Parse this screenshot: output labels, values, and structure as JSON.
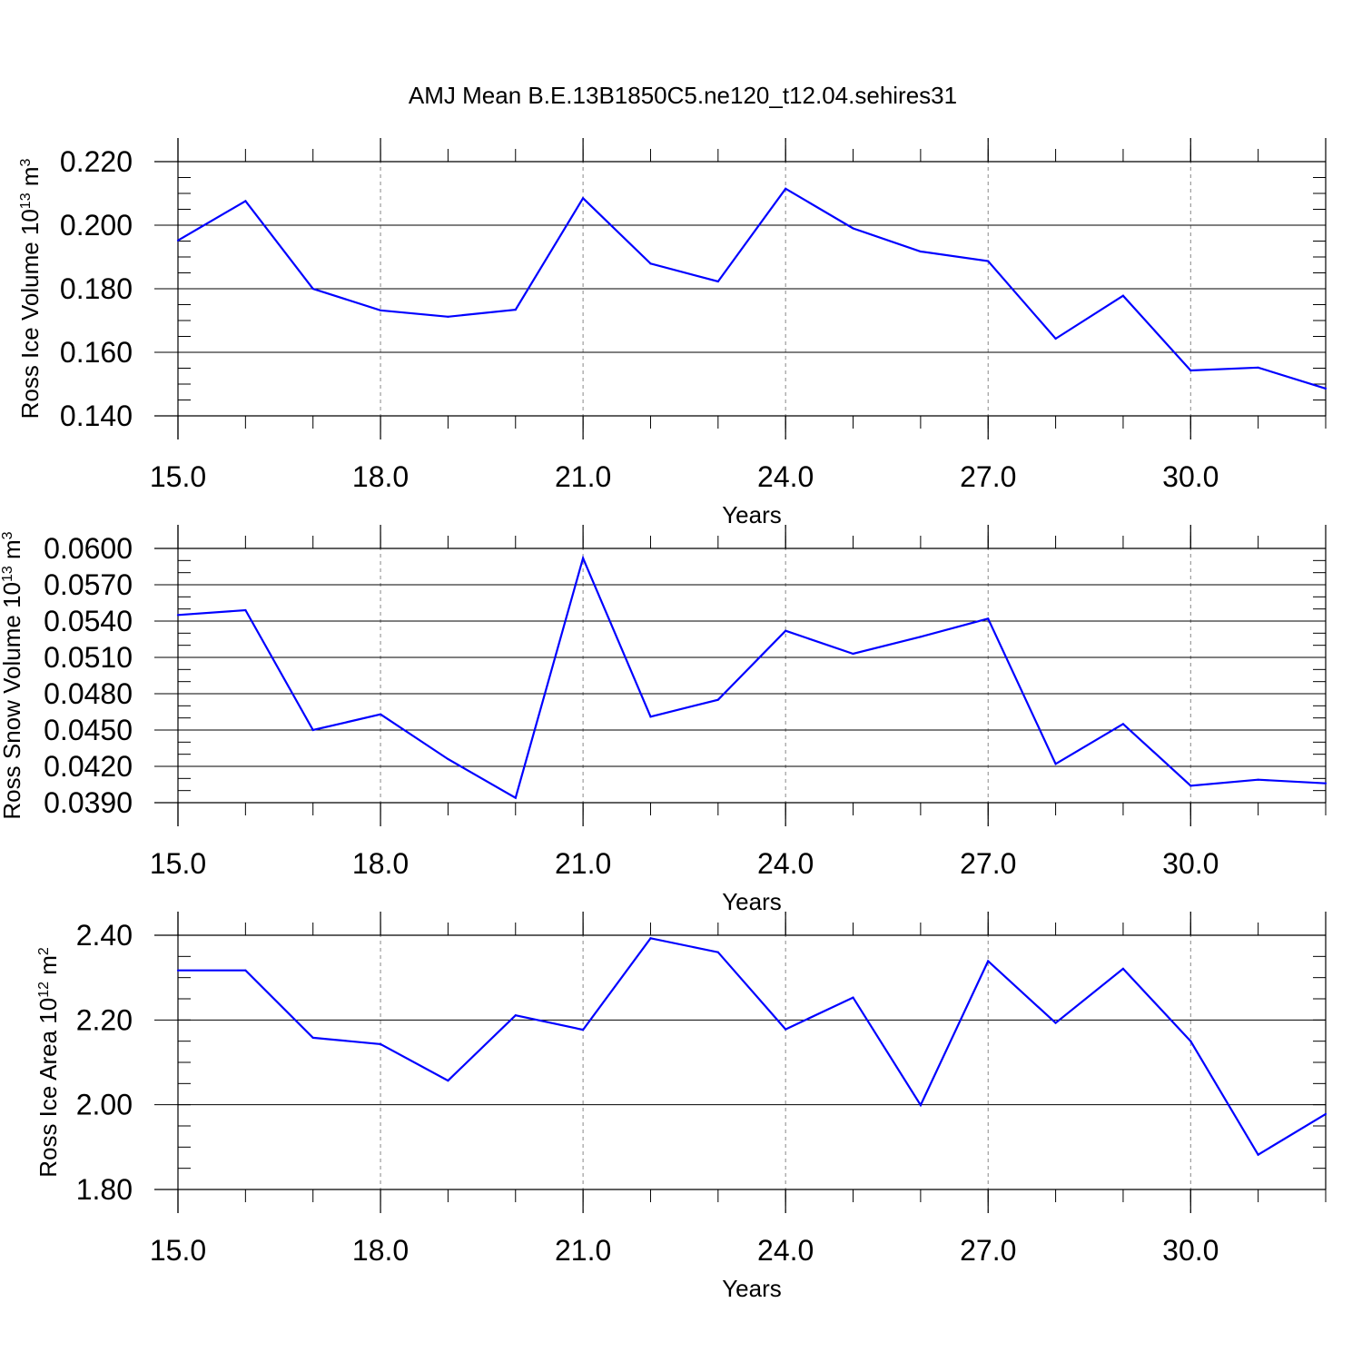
{
  "title": "AMJ Mean B.E.13B1850C5.ne120_t12.04.sehires31",
  "chart_data": [
    {
      "type": "line",
      "xlabel": "Years",
      "ylabel": {
        "prefix": "Ross Ice Volume 10",
        "exp": "13",
        "unit": " m",
        "unit_exp": "3"
      },
      "xlim": [
        15,
        32
      ],
      "ylim": [
        0.14,
        0.22
      ],
      "xticks": [
        15,
        18,
        21,
        24,
        27,
        30
      ],
      "xtick_labels": [
        "15.0",
        "18.0",
        "21.0",
        "24.0",
        "27.0",
        "30.0"
      ],
      "yticks": [
        0.14,
        0.16,
        0.18,
        0.2,
        0.22
      ],
      "ytick_labels": [
        "0.140",
        "0.160",
        "0.180",
        "0.200",
        "0.220"
      ],
      "y_minor_step": 0.005,
      "line_color": "#0000ff",
      "x": [
        15,
        16,
        17,
        18,
        19,
        20,
        21,
        22,
        23,
        24,
        25,
        26,
        27,
        28,
        29,
        30,
        31,
        32
      ],
      "values": [
        0.1952,
        0.2076,
        0.18,
        0.1732,
        0.1712,
        0.1734,
        0.2085,
        0.1879,
        0.1823,
        0.2115,
        0.199,
        0.1917,
        0.1887,
        0.1643,
        0.1778,
        0.1543,
        0.1552,
        0.1486
      ]
    },
    {
      "type": "line",
      "xlabel": "Years",
      "ylabel": {
        "prefix": "Ross Snow Volume 10",
        "exp": "13",
        "unit": " m",
        "unit_exp": "3"
      },
      "xlim": [
        15,
        32
      ],
      "ylim": [
        0.039,
        0.06
      ],
      "xticks": [
        15,
        18,
        21,
        24,
        27,
        30
      ],
      "xtick_labels": [
        "15.0",
        "18.0",
        "21.0",
        "24.0",
        "27.0",
        "30.0"
      ],
      "yticks": [
        0.039,
        0.042,
        0.045,
        0.048,
        0.051,
        0.054,
        0.057,
        0.06
      ],
      "ytick_labels": [
        "0.0390",
        "0.0420",
        "0.0450",
        "0.0480",
        "0.0510",
        "0.0540",
        "0.0570",
        "0.0600"
      ],
      "y_minor_step": 0.001,
      "line_color": "#0000ff",
      "x": [
        15,
        16,
        17,
        18,
        19,
        20,
        21,
        22,
        23,
        24,
        25,
        26,
        27,
        28,
        29,
        30,
        31,
        32
      ],
      "values": [
        0.0545,
        0.0549,
        0.045,
        0.0463,
        0.0426,
        0.0394,
        0.0592,
        0.0461,
        0.0475,
        0.0532,
        0.0513,
        0.0527,
        0.0542,
        0.0422,
        0.0455,
        0.0404,
        0.0409,
        0.0406
      ]
    },
    {
      "type": "line",
      "xlabel": "Years",
      "ylabel": {
        "prefix": "Ross Ice Area 10",
        "exp": "12",
        "unit": " m",
        "unit_exp": "2"
      },
      "xlim": [
        15,
        32
      ],
      "ylim": [
        1.8,
        2.4
      ],
      "xticks": [
        15,
        18,
        21,
        24,
        27,
        30
      ],
      "xtick_labels": [
        "15.0",
        "18.0",
        "21.0",
        "24.0",
        "27.0",
        "30.0"
      ],
      "yticks": [
        1.8,
        2.0,
        2.2,
        2.4
      ],
      "ytick_labels": [
        "1.80",
        "2.00",
        "2.20",
        "2.40"
      ],
      "y_minor_step": 0.05,
      "line_color": "#0000ff",
      "x": [
        15,
        16,
        17,
        18,
        19,
        20,
        21,
        22,
        23,
        24,
        25,
        26,
        27,
        28,
        29,
        30,
        31,
        32
      ],
      "values": [
        2.317,
        2.317,
        2.158,
        2.143,
        2.057,
        2.211,
        2.177,
        2.393,
        2.36,
        2.178,
        2.253,
        1.999,
        2.339,
        2.193,
        2.321,
        2.15,
        1.882,
        1.978
      ]
    }
  ]
}
